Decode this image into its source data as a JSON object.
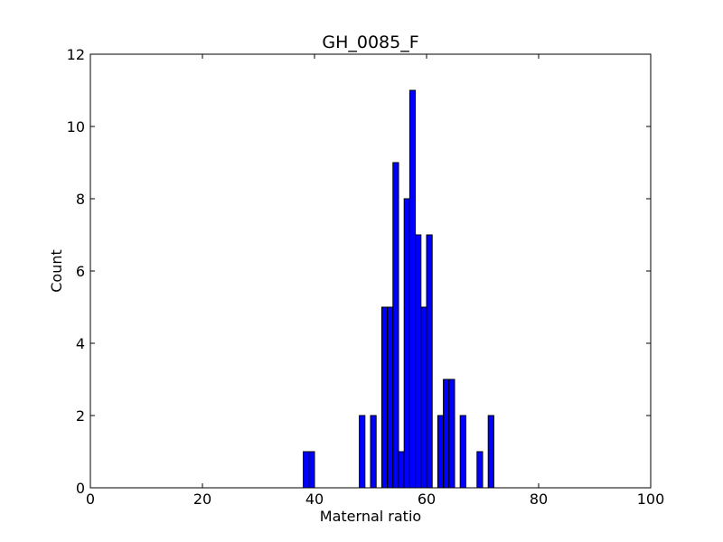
{
  "chart_data": {
    "type": "bar",
    "title": "GH_0085_F",
    "xlabel": "Maternal ratio",
    "ylabel": "Count",
    "xlim": [
      0,
      100
    ],
    "ylim": [
      0,
      12
    ],
    "xticks": [
      0,
      20,
      40,
      60,
      80,
      100
    ],
    "yticks": [
      0,
      2,
      4,
      6,
      8,
      10,
      12
    ],
    "bin_width": 1,
    "bar_color": "#0000ff",
    "edge_color": "#000000",
    "grid": false,
    "bins": [
      {
        "x": 38,
        "count": 1
      },
      {
        "x": 39,
        "count": 1
      },
      {
        "x": 48,
        "count": 2
      },
      {
        "x": 50,
        "count": 2
      },
      {
        "x": 52,
        "count": 5
      },
      {
        "x": 53,
        "count": 5
      },
      {
        "x": 54,
        "count": 9
      },
      {
        "x": 55,
        "count": 1
      },
      {
        "x": 56,
        "count": 8
      },
      {
        "x": 57,
        "count": 11
      },
      {
        "x": 58,
        "count": 7
      },
      {
        "x": 59,
        "count": 5
      },
      {
        "x": 60,
        "count": 7
      },
      {
        "x": 62,
        "count": 2
      },
      {
        "x": 63,
        "count": 3
      },
      {
        "x": 64,
        "count": 3
      },
      {
        "x": 66,
        "count": 2
      },
      {
        "x": 69,
        "count": 1
      },
      {
        "x": 71,
        "count": 2
      }
    ]
  }
}
